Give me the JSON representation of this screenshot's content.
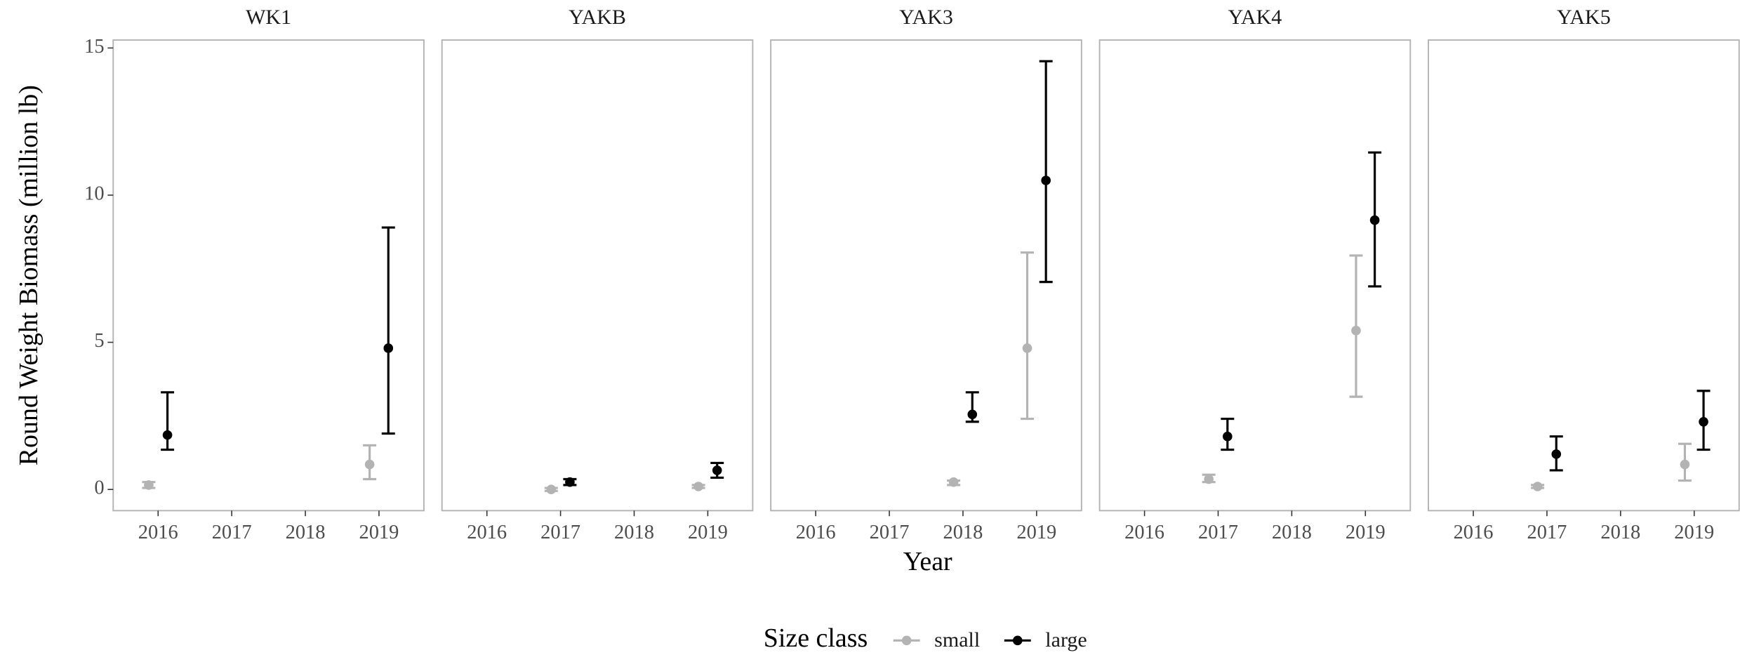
{
  "y_label": "Round Weight Biomass (million lb)",
  "x_label": "Year",
  "legend": {
    "title": "Size class"
  },
  "chart_data": [
    {
      "type": "errorbar",
      "title": "WK1",
      "categories": [
        2016,
        2017,
        2018,
        2019
      ],
      "ylim": [
        -0.72,
        15.27
      ],
      "yticks": [
        0,
        5,
        10,
        15
      ],
      "series": [
        {
          "name": "small",
          "color": "#b3b3b3",
          "values": [
            0.15,
            null,
            null,
            0.85
          ],
          "lower": [
            0.05,
            null,
            null,
            0.35
          ],
          "upper": [
            0.25,
            null,
            null,
            1.5
          ]
        },
        {
          "name": "large",
          "color": "#000000",
          "values": [
            1.85,
            null,
            null,
            4.8
          ],
          "lower": [
            1.35,
            null,
            null,
            1.9
          ],
          "upper": [
            3.3,
            null,
            null,
            8.9
          ]
        }
      ]
    },
    {
      "type": "errorbar",
      "title": "YAKB",
      "categories": [
        2016,
        2017,
        2018,
        2019
      ],
      "ylim": [
        -0.72,
        15.27
      ],
      "yticks": [
        0,
        5,
        10,
        15
      ],
      "series": [
        {
          "name": "small",
          "color": "#b3b3b3",
          "values": [
            null,
            0,
            null,
            0.1
          ],
          "lower": [
            null,
            -0.05,
            null,
            0.05
          ],
          "upper": [
            null,
            0.05,
            null,
            0.15
          ]
        },
        {
          "name": "large",
          "color": "#000000",
          "values": [
            null,
            0.25,
            null,
            0.65
          ],
          "lower": [
            null,
            0.15,
            null,
            0.4
          ],
          "upper": [
            null,
            0.35,
            null,
            0.9
          ]
        }
      ]
    },
    {
      "type": "errorbar",
      "title": "YAK3",
      "categories": [
        2016,
        2017,
        2018,
        2019
      ],
      "ylim": [
        -0.72,
        15.27
      ],
      "yticks": [
        0,
        5,
        10,
        15
      ],
      "series": [
        {
          "name": "small",
          "color": "#b3b3b3",
          "values": [
            null,
            null,
            0.25,
            4.8
          ],
          "lower": [
            null,
            null,
            0.15,
            2.4
          ],
          "upper": [
            null,
            null,
            0.3,
            8.05
          ]
        },
        {
          "name": "large",
          "color": "#000000",
          "values": [
            null,
            null,
            2.55,
            10.5
          ],
          "lower": [
            null,
            null,
            2.3,
            7.05
          ],
          "upper": [
            null,
            null,
            3.3,
            14.55
          ]
        }
      ]
    },
    {
      "type": "errorbar",
      "title": "YAK4",
      "categories": [
        2016,
        2017,
        2018,
        2019
      ],
      "ylim": [
        -0.72,
        15.27
      ],
      "yticks": [
        0,
        5,
        10,
        15
      ],
      "series": [
        {
          "name": "small",
          "color": "#b3b3b3",
          "values": [
            null,
            0.35,
            null,
            5.4
          ],
          "lower": [
            null,
            0.25,
            null,
            3.15
          ],
          "upper": [
            null,
            0.5,
            null,
            7.95
          ]
        },
        {
          "name": "large",
          "color": "#000000",
          "values": [
            null,
            1.8,
            null,
            9.15
          ],
          "lower": [
            null,
            1.35,
            null,
            6.9
          ],
          "upper": [
            null,
            2.4,
            null,
            11.45
          ]
        }
      ]
    },
    {
      "type": "errorbar",
      "title": "YAK5",
      "categories": [
        2016,
        2017,
        2018,
        2019
      ],
      "ylim": [
        -0.72,
        15.27
      ],
      "yticks": [
        0,
        5,
        10,
        15
      ],
      "series": [
        {
          "name": "small",
          "color": "#b3b3b3",
          "values": [
            null,
            0.1,
            null,
            0.85
          ],
          "lower": [
            null,
            0.05,
            null,
            0.3
          ],
          "upper": [
            null,
            0.15,
            null,
            1.55
          ]
        },
        {
          "name": "large",
          "color": "#000000",
          "values": [
            null,
            1.2,
            null,
            2.3
          ],
          "lower": [
            null,
            0.65,
            null,
            1.35
          ],
          "upper": [
            null,
            1.8,
            null,
            3.35
          ]
        }
      ]
    }
  ]
}
